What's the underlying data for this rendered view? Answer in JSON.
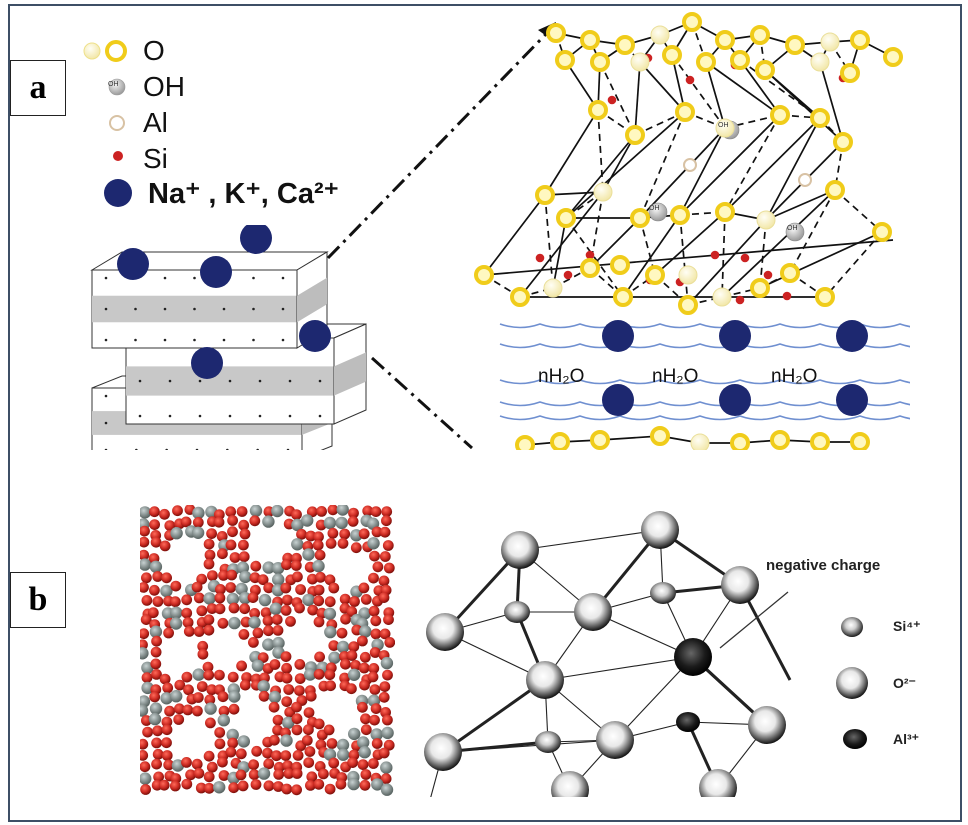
{
  "panels": {
    "a": {
      "label": "a",
      "legend": [
        {
          "symbol": "O",
          "icon": "yellow-sphere",
          "label": "O"
        },
        {
          "symbol": "OH",
          "icon": "grey-sphere",
          "label": "OH",
          "marker_text": "OH"
        },
        {
          "symbol": "Al",
          "icon": "beige-sphere",
          "label": "Al"
        },
        {
          "symbol": "Si",
          "icon": "red-dot",
          "label": "Si"
        },
        {
          "symbol": "cations",
          "icon": "navy-sphere",
          "label": "Na⁺ , K⁺, Ca²⁺"
        }
      ],
      "water_labels": [
        "nH₂O",
        "nH₂O",
        "nH₂O"
      ],
      "oh_marker": "OH"
    },
    "b": {
      "label": "b",
      "annotation": "negative charge",
      "legend": [
        {
          "symbol": "Si4+",
          "icon": "small-grey-sphere",
          "label": "Si⁴⁺"
        },
        {
          "symbol": "O2-",
          "icon": "large-white-sphere",
          "label": "O²⁻"
        },
        {
          "symbol": "Al3+",
          "icon": "dark-sphere",
          "label": "Al³⁺"
        }
      ]
    }
  },
  "colors": {
    "frame": "#3d4f66",
    "oxygen": "#f4d93c",
    "silicon": "#cc2222",
    "cation": "#1d2870",
    "water_line": "#6f8fd0",
    "zeolite_red": "#cc2a22",
    "zeolite_grey": "#7f8c8c"
  }
}
